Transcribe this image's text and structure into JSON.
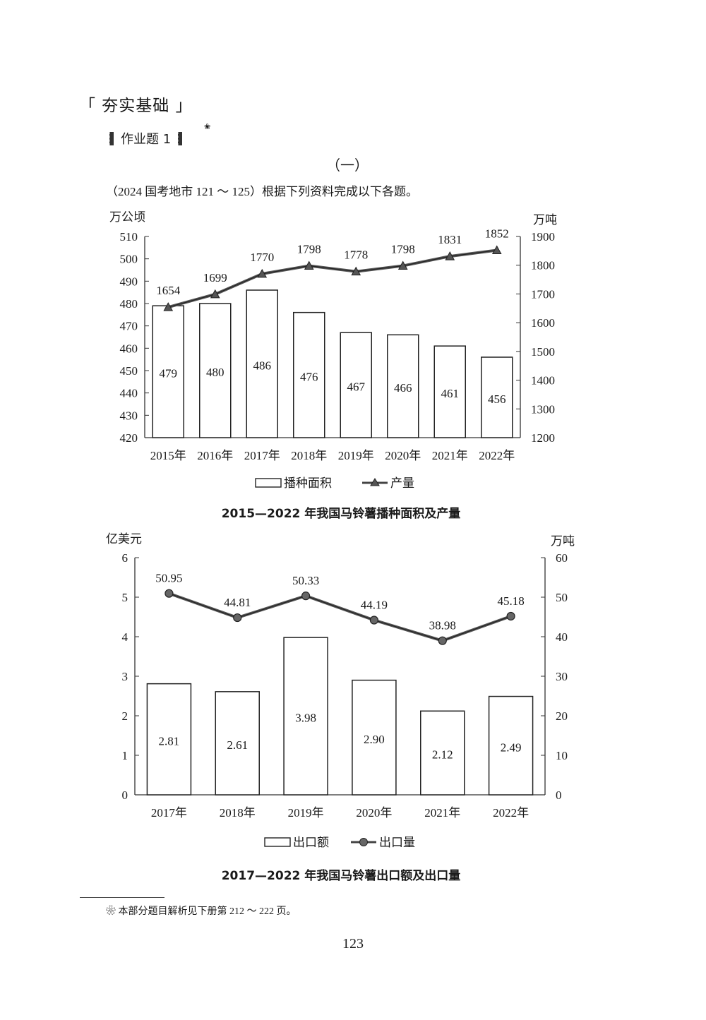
{
  "header": {
    "section_title": "「 夯实基础 」",
    "homework_title": "作业题 1",
    "homework_mark": "❀",
    "part_number": "（一）",
    "intro": "（2024 国考地市 121 ～ 125）根据下列资料完成以下各题。"
  },
  "chart_data": [
    {
      "type": "bar+line",
      "title": "2015—2022 年我国马铃薯播种面积及产量",
      "categories": [
        "2015年",
        "2016年",
        "2017年",
        "2018年",
        "2019年",
        "2020年",
        "2021年",
        "2022年"
      ],
      "series": [
        {
          "name": "播种面积",
          "type": "bar",
          "axis": "left",
          "values": [
            479,
            480,
            486,
            476,
            467,
            466,
            461,
            456
          ],
          "labels": [
            "479",
            "480",
            "486",
            "476",
            "467",
            "466",
            "461",
            "456"
          ]
        },
        {
          "name": "产量",
          "type": "line",
          "axis": "right",
          "marker": "triangle",
          "values": [
            1654,
            1699,
            1770,
            1798,
            1778,
            1798,
            1831,
            1852
          ],
          "labels": [
            "1654",
            "1699",
            "1770",
            "1798",
            "1778",
            "1798",
            "1831",
            "1852"
          ]
        }
      ],
      "ylabel_left": "万公顷",
      "ylabel_right": "万吨",
      "ylim_left": [
        420,
        510
      ],
      "yticks_left": [
        "420",
        "430",
        "440",
        "450",
        "460",
        "470",
        "480",
        "490",
        "500",
        "510"
      ],
      "ylim_right": [
        1200,
        1900
      ],
      "yticks_right": [
        "1200",
        "1300",
        "1400",
        "1500",
        "1600",
        "1700",
        "1800",
        "1900"
      ],
      "legend": [
        "播种面积",
        "产量"
      ],
      "legend_position": "bottom",
      "grid": false
    },
    {
      "type": "bar+line",
      "title": "2017—2022 年我国马铃薯出口额及出口量",
      "categories": [
        "2017年",
        "2018年",
        "2019年",
        "2020年",
        "2021年",
        "2022年"
      ],
      "series": [
        {
          "name": "出口额",
          "type": "bar",
          "axis": "left",
          "values": [
            2.81,
            2.61,
            3.98,
            2.9,
            2.12,
            2.49
          ],
          "labels": [
            "2.81",
            "2.61",
            "3.98",
            "2.90",
            "2.12",
            "2.49"
          ]
        },
        {
          "name": "出口量",
          "type": "line",
          "axis": "right",
          "marker": "circle",
          "values": [
            50.95,
            44.81,
            50.33,
            44.19,
            38.98,
            45.18
          ],
          "labels": [
            "50.95",
            "44.81",
            "50.33",
            "44.19",
            "38.98",
            "45.18"
          ]
        }
      ],
      "ylabel_left": "亿美元",
      "ylabel_right": "万吨",
      "ylim_left": [
        0,
        6
      ],
      "yticks_left": [
        "0",
        "1",
        "2",
        "3",
        "4",
        "5",
        "6"
      ],
      "ylim_right": [
        0,
        60
      ],
      "yticks_right": [
        "0",
        "10",
        "20",
        "30",
        "40",
        "50",
        "60"
      ],
      "legend": [
        "出口额",
        "出口量"
      ],
      "legend_position": "bottom",
      "grid": false
    }
  ],
  "footnote": {
    "mark": "❀",
    "text": "本部分题目解析见下册第 212 ～ 222 页。"
  },
  "page_number": "123"
}
